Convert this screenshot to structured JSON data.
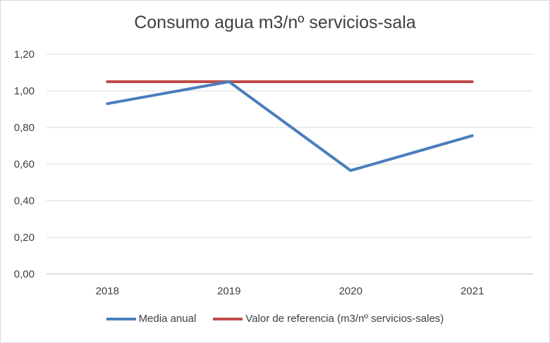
{
  "chart_data": {
    "type": "line",
    "title": "Consumo agua m3/nº servicios-sala",
    "categories": [
      "2018",
      "2019",
      "2020",
      "2021"
    ],
    "series": [
      {
        "name": "Media anual",
        "values": [
          0.93,
          1.05,
          0.565,
          0.755
        ],
        "color": "#4a7ebb"
      },
      {
        "name": "Valor de referencia (m3/nº servicios-sales)",
        "values": [
          1.05,
          1.05,
          1.05,
          1.05
        ],
        "color": "#be4b48"
      }
    ],
    "ylim": [
      0,
      1.2
    ],
    "yticks": [
      "0,00",
      "0,20",
      "0,40",
      "0,60",
      "0,80",
      "1,00",
      "1,20"
    ],
    "grid": true,
    "legend_position": "bottom"
  }
}
